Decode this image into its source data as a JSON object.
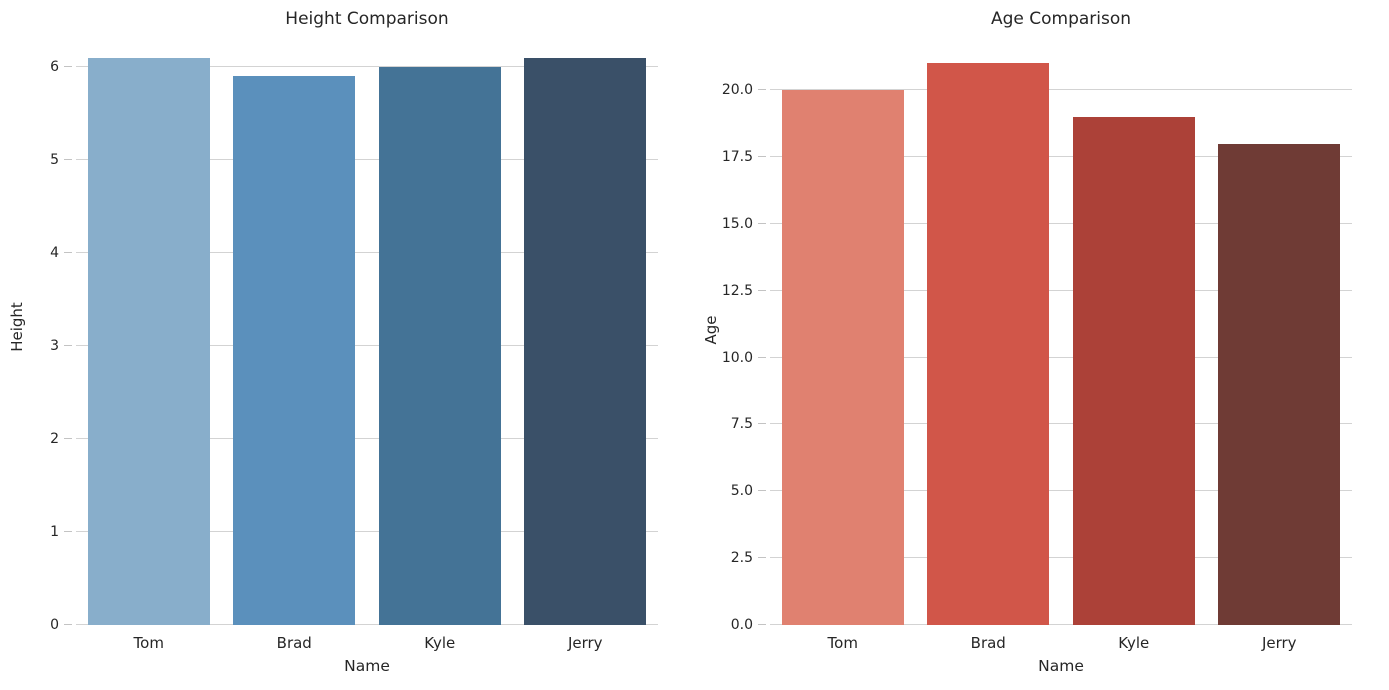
{
  "style": {
    "background": "#ffffff",
    "grid_color": "#d3d3d3",
    "tick_mark_color": "#c3c3c3",
    "text_color": "#262626"
  },
  "chart_data": [
    {
      "type": "bar",
      "title": "Height Comparison",
      "xlabel": "Name",
      "ylabel": "Height",
      "categories": [
        "Tom",
        "Brad",
        "Kyle",
        "Jerry"
      ],
      "values": [
        6.1,
        5.9,
        6.0,
        6.1
      ],
      "bar_colors": [
        "#88aecb",
        "#5b90bc",
        "#447396",
        "#3a5068"
      ],
      "ylim": [
        0,
        6.41
      ],
      "yticks": [
        0,
        1,
        2,
        3,
        4,
        5,
        6
      ],
      "ytick_labels": [
        "0",
        "1",
        "2",
        "3",
        "4",
        "5",
        "6"
      ],
      "grid": true,
      "legend": false
    },
    {
      "type": "bar",
      "title": "Age Comparison",
      "xlabel": "Name",
      "ylabel": "Age",
      "categories": [
        "Tom",
        "Brad",
        "Kyle",
        "Jerry"
      ],
      "values": [
        20,
        21,
        19,
        18
      ],
      "bar_colors": [
        "#e08170",
        "#d15649",
        "#ac4138",
        "#6f3b35"
      ],
      "ylim": [
        0,
        22.06
      ],
      "yticks": [
        0,
        2.5,
        5,
        7.5,
        10,
        12.5,
        15,
        17.5,
        20
      ],
      "ytick_labels": [
        "0.0",
        "2.5",
        "5.0",
        "7.5",
        "10.0",
        "12.5",
        "15.0",
        "17.5",
        "20.0"
      ],
      "grid": true,
      "legend": false
    }
  ]
}
